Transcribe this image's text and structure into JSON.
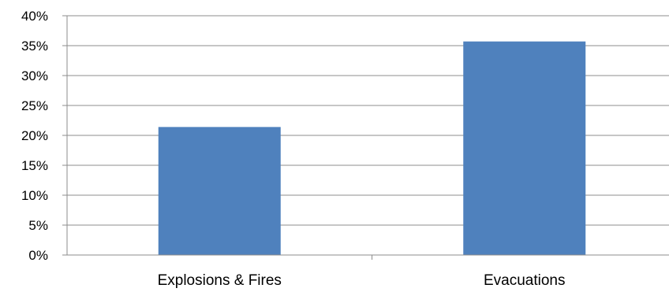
{
  "chart_data": {
    "type": "bar",
    "categories": [
      "Explosions & Fires",
      "Evacuations"
    ],
    "values": [
      21.4,
      35.7
    ],
    "ylim": [
      0,
      40
    ],
    "ytick_step": 5,
    "ytick_labels": [
      "0%",
      "5%",
      "10%",
      "15%",
      "20%",
      "25%",
      "30%",
      "35%",
      "40%"
    ],
    "grid": true,
    "legend": "none",
    "bar_color": "#4F81BD"
  }
}
